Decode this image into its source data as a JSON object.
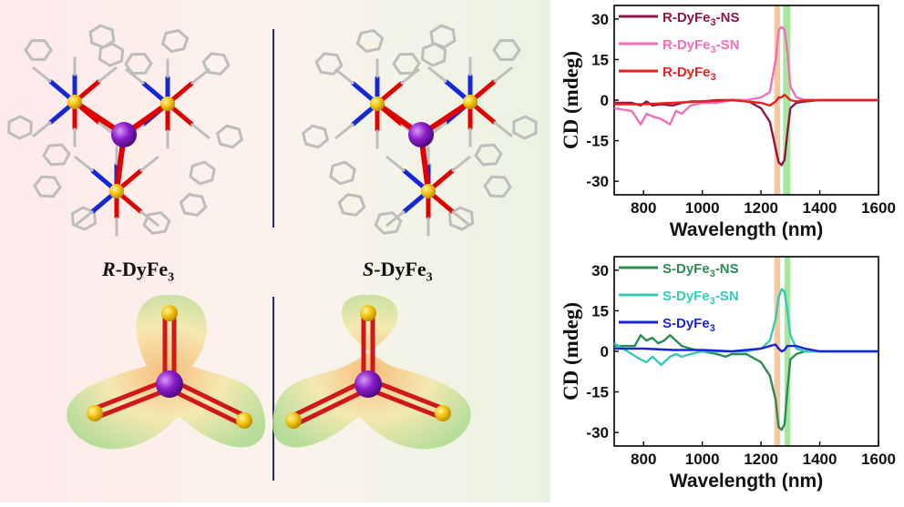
{
  "left": {
    "label_r_prefix": "R",
    "label_r_main": "-DyFe",
    "label_r_sub": "3",
    "label_s_prefix": "S",
    "label_s_main": "-DyFe",
    "label_s_sub": "3",
    "colors": {
      "dy": "#8a1cc8",
      "fe": "#f2c40f",
      "o": "#e00000",
      "n": "#1428d8",
      "c": "#bdbdbd"
    }
  },
  "chart_data": [
    {
      "type": "line",
      "xlabel": "Wavelength (nm)",
      "ylabel": "CD (mdeg)",
      "xlim": [
        700,
        1600
      ],
      "ylim": [
        -35,
        35
      ],
      "xticks": [
        800,
        1000,
        1200,
        1400,
        1600
      ],
      "yticks": [
        30,
        15,
        0,
        -15,
        -30
      ],
      "bands": [
        {
          "from": 1245,
          "to": 1265,
          "color": "#f6c8a0"
        },
        {
          "from": 1275,
          "to": 1300,
          "color": "#a8e6a0"
        }
      ],
      "series": [
        {
          "name": "R-DyFe3-NS",
          "label_main": "R-DyFe",
          "label_sub": "3",
          "label_suffix": "-NS",
          "color": "#8e1545",
          "x": [
            700,
            760,
            790,
            810,
            830,
            860,
            900,
            930,
            960,
            1000,
            1050,
            1100,
            1150,
            1200,
            1230,
            1250,
            1260,
            1270,
            1280,
            1290,
            1300,
            1320,
            1350,
            1400,
            1450,
            1500,
            1550,
            1600
          ],
          "y": [
            -1,
            -1,
            -2,
            -0.5,
            -2,
            -1.5,
            -2,
            -1,
            -0.5,
            -0.5,
            0,
            0,
            0,
            -3,
            -8,
            -18,
            -23,
            -24,
            -22,
            -12,
            -3,
            -1,
            -0.5,
            0,
            0,
            0,
            0,
            0
          ]
        },
        {
          "name": "R-DyFe3-SN",
          "label_main": "R-DyFe",
          "label_sub": "3",
          "label_suffix": "-SN",
          "color": "#f26fb8",
          "x": [
            700,
            760,
            790,
            810,
            830,
            860,
            890,
            910,
            930,
            960,
            1000,
            1050,
            1100,
            1150,
            1200,
            1230,
            1250,
            1260,
            1270,
            1280,
            1290,
            1300,
            1320,
            1350,
            1400,
            1450,
            1500,
            1550,
            1600
          ],
          "y": [
            -3,
            -4,
            -9,
            -5,
            -6,
            -7,
            -9,
            -4,
            -5,
            -2,
            -1,
            -1,
            0,
            0,
            1,
            3,
            15,
            26,
            27,
            26,
            18,
            5,
            1,
            0,
            0,
            0,
            0,
            0,
            0
          ]
        },
        {
          "name": "R-DyFe3",
          "label_main": "R-DyFe",
          "label_sub": "3",
          "label_suffix": "",
          "color": "#e8201e",
          "x": [
            700,
            800,
            900,
            1000,
            1100,
            1200,
            1230,
            1250,
            1260,
            1270,
            1280,
            1290,
            1300,
            1320,
            1350,
            1400,
            1500,
            1600
          ],
          "y": [
            -1.5,
            -1.5,
            -1,
            -0.5,
            0,
            -1,
            -2,
            -0.5,
            1,
            1,
            2,
            1,
            0,
            -0.5,
            0,
            0,
            0,
            0
          ]
        }
      ]
    },
    {
      "type": "line",
      "xlabel": "Wavelength (nm)",
      "ylabel": "CD (mdeg)",
      "xlim": [
        700,
        1600
      ],
      "ylim": [
        -35,
        35
      ],
      "xticks": [
        800,
        1000,
        1200,
        1400,
        1600
      ],
      "yticks": [
        30,
        15,
        0,
        -15,
        -30
      ],
      "bands": [
        {
          "from": 1245,
          "to": 1265,
          "color": "#f6c8a0"
        },
        {
          "from": 1280,
          "to": 1300,
          "color": "#a8e6a0"
        }
      ],
      "series": [
        {
          "name": "S-DyFe3-NS",
          "label_main": "S-DyFe",
          "label_sub": "3",
          "label_suffix": "-NS",
          "color": "#2a8c55",
          "x": [
            700,
            740,
            770,
            790,
            810,
            830,
            850,
            870,
            890,
            910,
            930,
            960,
            1000,
            1050,
            1080,
            1100,
            1150,
            1200,
            1230,
            1250,
            1260,
            1270,
            1280,
            1290,
            1300,
            1320,
            1350,
            1400,
            1500,
            1600
          ],
          "y": [
            2,
            2,
            2,
            6,
            4,
            5,
            3,
            4,
            6,
            4,
            2,
            1,
            0,
            -1,
            -2,
            -1,
            -1,
            -4,
            -9,
            -18,
            -28,
            -29,
            -27,
            -14,
            -3,
            -1,
            0,
            0,
            0,
            0
          ]
        },
        {
          "name": "S-DyFe3-SN",
          "label_main": "S-DyFe",
          "label_sub": "3",
          "label_suffix": "-SN",
          "color": "#35c9b8",
          "x": [
            700,
            730,
            760,
            790,
            810,
            830,
            860,
            890,
            910,
            930,
            960,
            1000,
            1050,
            1100,
            1150,
            1200,
            1230,
            1250,
            1260,
            1270,
            1280,
            1290,
            1300,
            1320,
            1350,
            1400,
            1500,
            1600
          ],
          "y": [
            3,
            1,
            -1,
            -3,
            -4,
            -2,
            -5,
            -2,
            -1,
            -2,
            -1,
            0,
            0,
            0,
            0,
            1,
            4,
            12,
            20,
            23,
            22,
            15,
            6,
            1,
            0,
            0,
            0,
            0
          ]
        },
        {
          "name": "S-DyFe3",
          "label_main": "S-DyFe",
          "label_sub": "3",
          "label_suffix": "",
          "color": "#1a23d8",
          "x": [
            700,
            800,
            900,
            1000,
            1100,
            1200,
            1230,
            1250,
            1260,
            1270,
            1280,
            1290,
            1300,
            1320,
            1350,
            1400,
            1500,
            1600
          ],
          "y": [
            1,
            1,
            0.5,
            0.5,
            0,
            1,
            2,
            2.5,
            1,
            0,
            0.5,
            2,
            2,
            2,
            1,
            0,
            0,
            0
          ]
        }
      ]
    }
  ]
}
